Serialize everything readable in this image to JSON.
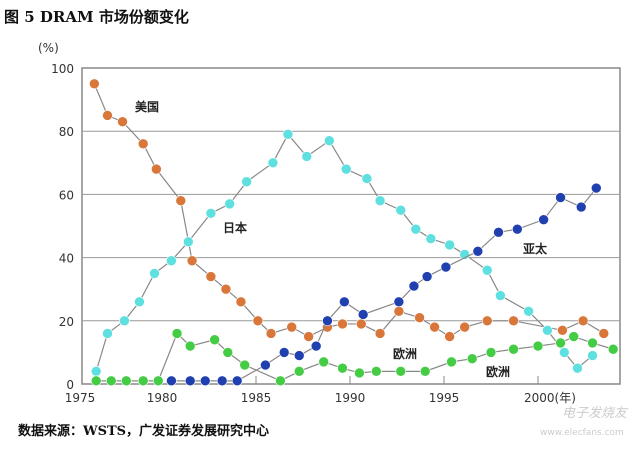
{
  "title": "图 5 DRAM 市场份额变化",
  "source": "数据来源：WSTS，广发证券发展研究中心",
  "watermark": "电子发烧友",
  "watermark_url": "www.elecfans.com",
  "chart_data": {
    "type": "line",
    "title": "DRAM 市场份额变化",
    "ylabel": "(%)",
    "xlabel": "(年)",
    "ylim": [
      0,
      100
    ],
    "xlim": [
      1975,
      2004.5
    ],
    "yticks": [
      "0",
      "20",
      "40",
      "60",
      "80",
      "100"
    ],
    "xticks": [
      "1975",
      "1980",
      "1985",
      "1990",
      "1995",
      "2000(年)"
    ],
    "grid": true,
    "series": [
      {
        "name": "美国",
        "color": "#d9763a",
        "points": [
          [
            1976.4,
            95
          ],
          [
            1977.1,
            85
          ],
          [
            1977.9,
            83
          ],
          [
            1979.0,
            76
          ],
          [
            1979.7,
            68
          ],
          [
            1981.0,
            58
          ],
          [
            1981.6,
            39
          ],
          [
            1982.6,
            34
          ],
          [
            1983.4,
            30
          ],
          [
            1984.2,
            26
          ],
          [
            1985.1,
            20
          ],
          [
            1985.8,
            16
          ],
          [
            1986.9,
            18
          ],
          [
            1987.8,
            15
          ],
          [
            1988.8,
            18
          ],
          [
            1989.6,
            19
          ],
          [
            1990.6,
            19
          ],
          [
            1991.6,
            16
          ],
          [
            1992.6,
            23
          ],
          [
            1993.7,
            21
          ],
          [
            1994.5,
            18
          ],
          [
            1995.3,
            15
          ],
          [
            1996.1,
            18
          ],
          [
            1997.3,
            20
          ],
          [
            1998.7,
            20
          ],
          [
            2001.3,
            17
          ],
          [
            2002.4,
            20
          ],
          [
            2003.5,
            16
          ]
        ]
      },
      {
        "name": "日本",
        "color": "#5ee0e0",
        "points": [
          [
            1976.5,
            4
          ],
          [
            1977.1,
            16
          ],
          [
            1978.0,
            20
          ],
          [
            1978.8,
            26
          ],
          [
            1979.6,
            35
          ],
          [
            1980.5,
            39
          ],
          [
            1981.4,
            45
          ],
          [
            1982.6,
            54
          ],
          [
            1983.6,
            57
          ],
          [
            1984.5,
            64
          ],
          [
            1985.9,
            70
          ],
          [
            1986.7,
            79
          ],
          [
            1987.7,
            72
          ],
          [
            1988.9,
            77
          ],
          [
            1989.8,
            68
          ],
          [
            1990.9,
            65
          ],
          [
            1991.6,
            58
          ],
          [
            1992.7,
            55
          ],
          [
            1993.5,
            49
          ],
          [
            1994.3,
            46
          ],
          [
            1995.3,
            44
          ],
          [
            1996.1,
            41
          ],
          [
            1997.3,
            36
          ],
          [
            1998.0,
            28
          ],
          [
            1999.5,
            23
          ],
          [
            2000.5,
            17
          ],
          [
            2001.4,
            10
          ],
          [
            2002.1,
            5
          ],
          [
            2002.9,
            9
          ]
        ]
      },
      {
        "name": "亚太",
        "color": "#2040b0",
        "points": [
          [
            1980.5,
            1
          ],
          [
            1981.5,
            1
          ],
          [
            1982.3,
            1
          ],
          [
            1983.2,
            1
          ],
          [
            1984.0,
            1
          ],
          [
            1985.5,
            6
          ],
          [
            1986.5,
            10
          ],
          [
            1987.3,
            9
          ],
          [
            1988.2,
            12
          ],
          [
            1988.8,
            20
          ],
          [
            1989.7,
            26
          ],
          [
            1990.7,
            22
          ],
          [
            1992.6,
            26
          ],
          [
            1993.4,
            31
          ],
          [
            1994.1,
            34
          ],
          [
            1995.1,
            37
          ],
          [
            1996.8,
            42
          ],
          [
            1997.9,
            48
          ],
          [
            1998.9,
            49
          ],
          [
            2000.3,
            52
          ],
          [
            2001.2,
            59
          ],
          [
            2002.3,
            56
          ],
          [
            2003.1,
            62
          ]
        ]
      },
      {
        "name": "欧洲",
        "color": "#44cc44",
        "points": [
          [
            1976.5,
            1
          ],
          [
            1977.3,
            1
          ],
          [
            1978.1,
            1
          ],
          [
            1979.0,
            1
          ],
          [
            1979.8,
            1
          ],
          [
            1980.8,
            16
          ],
          [
            1981.5,
            12
          ],
          [
            1982.8,
            14
          ],
          [
            1983.5,
            10
          ],
          [
            1984.4,
            6
          ],
          [
            1986.3,
            1
          ],
          [
            1987.3,
            4
          ],
          [
            1988.6,
            7
          ],
          [
            1989.6,
            5
          ],
          [
            1990.5,
            3.5
          ],
          [
            1991.4,
            4
          ],
          [
            1992.7,
            4
          ],
          [
            1994.0,
            4
          ],
          [
            1995.4,
            7
          ],
          [
            1996.5,
            8
          ],
          [
            1997.5,
            10
          ],
          [
            1998.7,
            11
          ],
          [
            2000.0,
            12
          ],
          [
            2001.2,
            13
          ],
          [
            2001.9,
            15
          ],
          [
            2002.9,
            13
          ],
          [
            2004.0,
            11
          ]
        ]
      }
    ],
    "annotations": [
      "美国",
      "日本",
      "亚太",
      "欧洲",
      "欧洲"
    ]
  }
}
